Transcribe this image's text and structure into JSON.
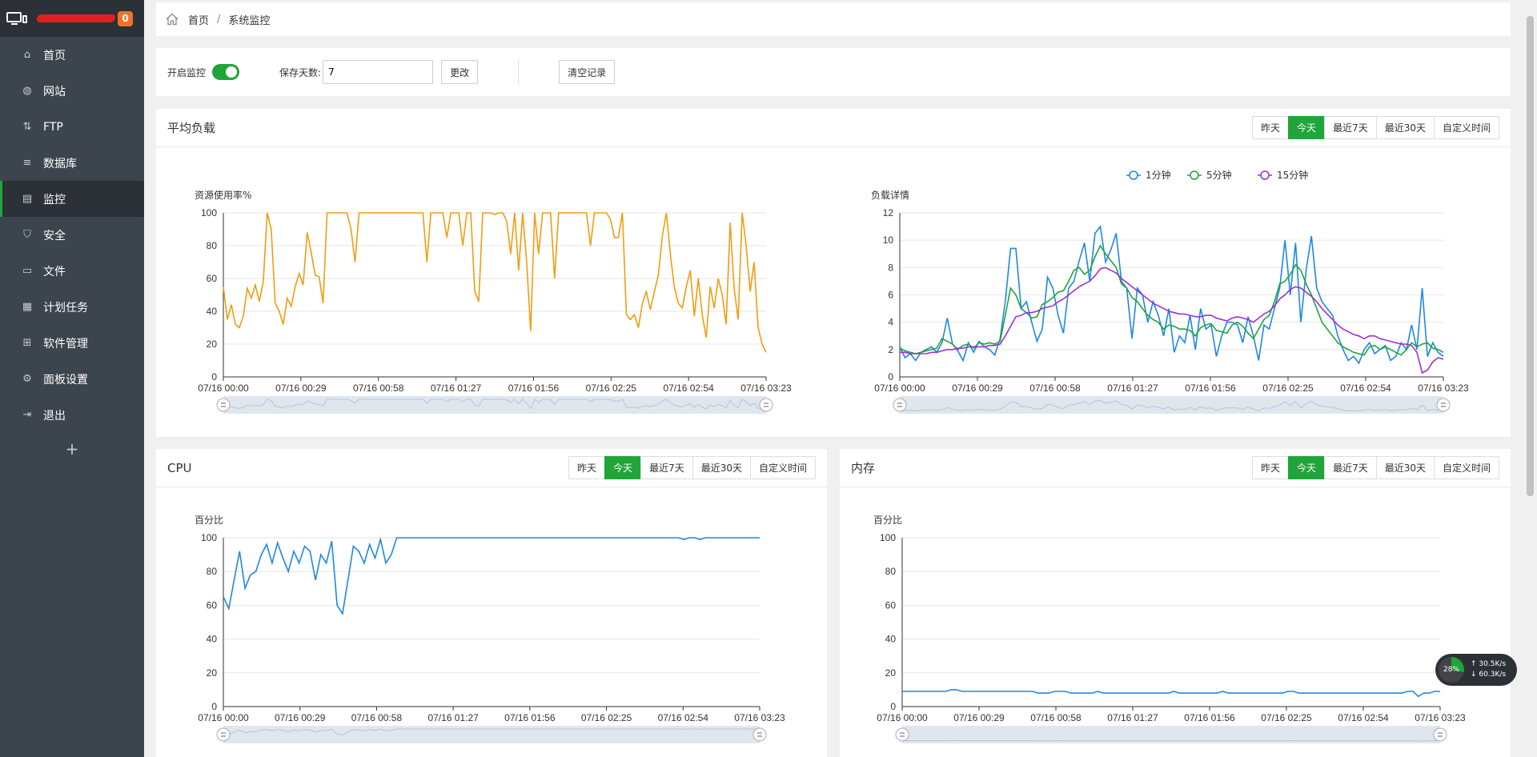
{
  "sidebar": {
    "badge": "0",
    "items": [
      {
        "label": "首页",
        "icon": "home-icon",
        "glyph": "⌂"
      },
      {
        "label": "网站",
        "icon": "globe-icon",
        "glyph": "◍"
      },
      {
        "label": "FTP",
        "icon": "ftp-icon",
        "glyph": "⇅"
      },
      {
        "label": "数据库",
        "icon": "database-icon",
        "glyph": "≡"
      },
      {
        "label": "监控",
        "icon": "monitor-chart-icon",
        "glyph": "▤"
      },
      {
        "label": "安全",
        "icon": "shield-icon",
        "glyph": "⛉"
      },
      {
        "label": "文件",
        "icon": "folder-icon",
        "glyph": "▭"
      },
      {
        "label": "计划任务",
        "icon": "calendar-icon",
        "glyph": "▦"
      },
      {
        "label": "软件管理",
        "icon": "apps-icon",
        "glyph": "⊞"
      },
      {
        "label": "面板设置",
        "icon": "gear-icon",
        "glyph": "⚙"
      },
      {
        "label": "退出",
        "icon": "logout-icon",
        "glyph": "⇥"
      }
    ],
    "add": "+"
  },
  "breadcrumb": {
    "home": "首页",
    "sep": "/",
    "current": "系统监控"
  },
  "controls": {
    "monitor_label": "开启监控",
    "monitor_on": true,
    "days_label": "保存天数:",
    "days_value": "7",
    "modify_label": "更改",
    "clear_label": "清空记录"
  },
  "ranges": [
    "昨天",
    "今天",
    "最近7天",
    "最近30天",
    "自定义时间"
  ],
  "panels": {
    "load": {
      "title": "平均负载"
    },
    "cpu": {
      "title": "CPU"
    },
    "mem": {
      "title": "内存"
    }
  },
  "chart_data": [
    {
      "id": "resource",
      "type": "line",
      "ylabel": "资源使用率%",
      "ylim": [
        0,
        100
      ],
      "yticks": [
        0,
        20,
        40,
        60,
        80,
        100
      ],
      "xticks": [
        "07/16 00:00",
        "07/16 00:29",
        "07/16 00:58",
        "07/16 01:27",
        "07/16 01:56",
        "07/16 02:25",
        "07/16 02:54",
        "07/16 03:23"
      ],
      "color": "#f39c12",
      "series": [
        {
          "values": [
            55,
            35,
            44,
            32,
            30,
            37,
            54,
            48,
            56,
            46,
            58,
            100,
            90,
            45,
            40,
            32,
            48,
            43,
            55,
            63,
            56,
            88,
            76,
            62,
            61,
            45,
            100,
            100,
            100,
            100,
            100,
            100,
            90,
            70,
            100,
            100,
            100,
            100,
            100,
            100,
            100,
            100,
            100,
            100,
            100,
            100,
            100,
            100,
            100,
            100,
            100,
            70,
            100,
            100,
            100,
            100,
            85,
            100,
            100,
            100,
            80,
            100,
            100,
            52,
            46,
            100,
            100,
            100,
            99,
            100,
            100,
            95,
            75,
            100,
            65,
            100,
            70,
            28,
            100,
            75,
            100,
            100,
            100,
            60,
            100,
            100,
            100,
            100,
            100,
            100,
            100,
            100,
            80,
            100,
            100,
            100,
            100,
            96,
            85,
            85,
            100,
            38,
            35,
            38,
            30,
            45,
            52,
            41,
            52,
            62,
            86,
            100,
            75,
            55,
            45,
            42,
            55,
            65,
            37,
            60,
            38,
            24,
            55,
            42,
            60,
            50,
            32,
            94,
            54,
            35,
            100,
            80,
            52,
            70,
            30,
            20,
            15
          ]
        }
      ]
    },
    {
      "id": "load",
      "type": "line",
      "ylabel": "负载详情",
      "ylim": [
        0,
        12
      ],
      "yticks": [
        0,
        2,
        4,
        6,
        8,
        10,
        12
      ],
      "xticks": [
        "07/16 00:00",
        "07/16 00:29",
        "07/16 00:58",
        "07/16 01:27",
        "07/16 01:56",
        "07/16 02:25",
        "07/16 02:54",
        "07/16 03:23"
      ],
      "legend": "top-center",
      "series": [
        {
          "name": "1分钟",
          "color": "#1e88e5",
          "values": [
            2.2,
            1.4,
            1.7,
            1.2,
            1.8,
            2.0,
            2.2,
            1.8,
            2.5,
            4.3,
            2.4,
            1.9,
            1.2,
            2.5,
            1.8,
            2.6,
            2.2,
            2.0,
            1.6,
            2.8,
            5.5,
            9.4,
            9.4,
            5.0,
            5.5,
            4.0,
            2.6,
            3.5,
            7.3,
            6.5,
            4.5,
            3.2,
            6.5,
            7.0,
            8.5,
            9.8,
            7.0,
            10.5,
            11.0,
            8.4,
            9.3,
            10.5,
            7.0,
            6.5,
            2.8,
            6.5,
            6.0,
            4.0,
            5.5,
            4.5,
            3.0,
            5.0,
            1.8,
            3.0,
            2.5,
            4.5,
            2.0,
            5.0,
            3.5,
            3.8,
            1.5,
            3.0,
            4.0,
            4.0,
            3.8,
            2.5,
            4.4,
            3.0,
            1.2,
            3.8,
            3.5,
            5.0,
            6.5,
            10.0,
            6.0,
            9.8,
            4.0,
            7.8,
            10.3,
            6.5,
            5.5,
            5.0,
            4.5,
            3.0,
            2.0,
            1.2,
            1.5,
            1.0,
            2.0,
            2.5,
            1.7,
            2.0,
            2.3,
            1.2,
            1.5,
            2.5,
            2.0,
            3.8,
            2.0,
            6.5,
            1.5,
            2.5,
            1.8,
            1.5
          ]
        },
        {
          "name": "5分钟",
          "color": "#20a53a",
          "values": [
            2.1,
            1.9,
            1.8,
            1.7,
            1.8,
            1.9,
            2.0,
            2.1,
            2.8,
            2.6,
            2.4,
            2.0,
            2.3,
            2.4,
            2.1,
            2.5,
            2.4,
            2.5,
            2.4,
            2.6,
            4.5,
            6.5,
            6.0,
            5.0,
            4.7,
            4.3,
            4.4,
            5.3,
            5.5,
            5.8,
            6.2,
            6.3,
            7.0,
            7.8,
            8.0,
            7.5,
            7.8,
            8.8,
            9.6,
            9.0,
            8.5,
            8.0,
            6.8,
            6.5,
            5.8,
            5.5,
            5.0,
            4.5,
            4.2,
            4.0,
            3.5,
            3.8,
            3.7,
            3.5,
            3.5,
            3.4,
            3.0,
            3.6,
            3.8,
            3.9,
            3.4,
            3.3,
            3.2,
            3.8,
            4.0,
            3.7,
            3.2,
            2.8,
            3.5,
            4.2,
            4.5,
            5.5,
            6.8,
            7.0,
            7.5,
            8.2,
            7.8,
            6.8,
            6.0,
            5.0,
            4.0,
            3.5,
            3.0,
            2.5,
            2.2,
            2.0,
            1.8,
            1.7,
            1.6,
            2.2,
            2.3,
            2.0,
            2.2,
            2.0,
            1.8,
            1.6,
            2.0,
            2.5,
            2.2,
            2.4,
            2.5,
            2.1,
            2.0,
            1.8
          ]
        },
        {
          "name": "15分钟",
          "color": "#9b30d9",
          "values": [
            1.8,
            1.8,
            1.7,
            1.7,
            1.7,
            1.7,
            1.8,
            1.8,
            1.9,
            2.0,
            2.0,
            2.1,
            2.1,
            2.2,
            2.2,
            2.2,
            2.2,
            2.3,
            2.3,
            2.4,
            3.0,
            3.7,
            4.4,
            4.5,
            4.7,
            4.7,
            4.8,
            5.0,
            5.1,
            5.2,
            5.5,
            5.7,
            6.0,
            6.3,
            6.6,
            6.8,
            7.0,
            7.4,
            7.9,
            8.0,
            7.8,
            7.6,
            7.2,
            6.9,
            6.6,
            6.3,
            6.0,
            5.7,
            5.4,
            5.2,
            5.0,
            4.8,
            4.7,
            4.6,
            4.6,
            4.5,
            4.4,
            4.4,
            4.5,
            4.5,
            4.3,
            4.2,
            4.1,
            4.3,
            4.4,
            4.3,
            4.2,
            4.0,
            4.3,
            4.6,
            4.8,
            5.2,
            5.7,
            6.0,
            6.4,
            6.6,
            6.5,
            6.2,
            5.9,
            5.5,
            5.0,
            4.6,
            4.2,
            3.8,
            3.5,
            3.3,
            3.1,
            3.0,
            2.8,
            3.0,
            3.0,
            2.8,
            2.7,
            2.6,
            2.5,
            2.4,
            2.4,
            2.3,
            1.8,
            0.3,
            0.5,
            1.1,
            1.4,
            1.3
          ]
        }
      ]
    },
    {
      "id": "cpu",
      "type": "line",
      "ylabel": "百分比",
      "ylim": [
        0,
        100
      ],
      "yticks": [
        0,
        20,
        40,
        60,
        80,
        100
      ],
      "xticks": [
        "07/16 00:00",
        "07/16 00:29",
        "07/16 00:58",
        "07/16 01:27",
        "07/16 01:56",
        "07/16 02:25",
        "07/16 02:54",
        "07/16 03:23"
      ],
      "color": "#1e88e5",
      "series": [
        {
          "values": [
            65,
            58,
            75,
            92,
            70,
            78,
            80,
            90,
            96,
            85,
            97,
            88,
            80,
            92,
            85,
            95,
            92,
            75,
            90,
            85,
            98,
            60,
            55,
            75,
            95,
            92,
            85,
            96,
            88,
            99,
            85,
            90,
            100,
            100,
            100,
            100,
            100,
            100,
            100,
            100,
            100,
            100,
            100,
            100,
            100,
            100,
            100,
            100,
            100,
            100,
            100,
            100,
            100,
            100,
            100,
            100,
            100,
            100,
            100,
            100,
            100,
            100,
            100,
            100,
            100,
            100,
            100,
            100,
            100,
            100,
            100,
            100,
            100,
            100,
            100,
            100,
            100,
            100,
            100,
            100,
            100,
            100,
            100,
            100,
            100,
            99,
            100,
            100,
            99,
            100,
            100,
            100,
            100,
            100,
            100,
            100,
            100,
            100,
            100,
            100
          ]
        }
      ]
    },
    {
      "id": "mem",
      "type": "line",
      "ylabel": "百分比",
      "ylim": [
        0,
        100
      ],
      "yticks": [
        0,
        20,
        40,
        60,
        80,
        100
      ],
      "xticks": [
        "07/16 00:00",
        "07/16 00:29",
        "07/16 00:58",
        "07/16 01:27",
        "07/16 01:56",
        "07/16 02:25",
        "07/16 02:54",
        "07/16 03:23"
      ],
      "color": "#1e88e5",
      "series": [
        {
          "values": [
            9,
            9,
            9,
            9,
            9,
            9,
            9,
            9,
            9,
            10,
            10,
            9,
            9,
            9,
            9,
            9,
            9,
            9,
            9,
            9,
            9,
            9,
            9,
            9,
            9,
            8,
            8,
            8,
            9,
            9,
            9,
            8,
            8,
            8,
            8,
            8,
            9,
            8,
            8,
            8,
            8,
            8,
            8,
            8,
            8,
            8,
            8,
            8,
            8,
            8,
            9,
            8,
            8,
            8,
            8,
            8,
            8,
            8,
            8,
            9,
            8,
            8,
            8,
            8,
            8,
            8,
            8,
            8,
            8,
            8,
            8,
            9,
            9,
            8,
            8,
            8,
            8,
            8,
            8,
            8,
            8,
            8,
            8,
            8,
            8,
            8,
            8,
            8,
            8,
            8,
            8,
            8,
            8,
            9,
            9,
            6,
            8,
            8,
            9,
            9
          ]
        }
      ]
    }
  ],
  "net_widget": {
    "percent": "28%",
    "up": "30.5K/s",
    "down": "60.3K/s"
  }
}
